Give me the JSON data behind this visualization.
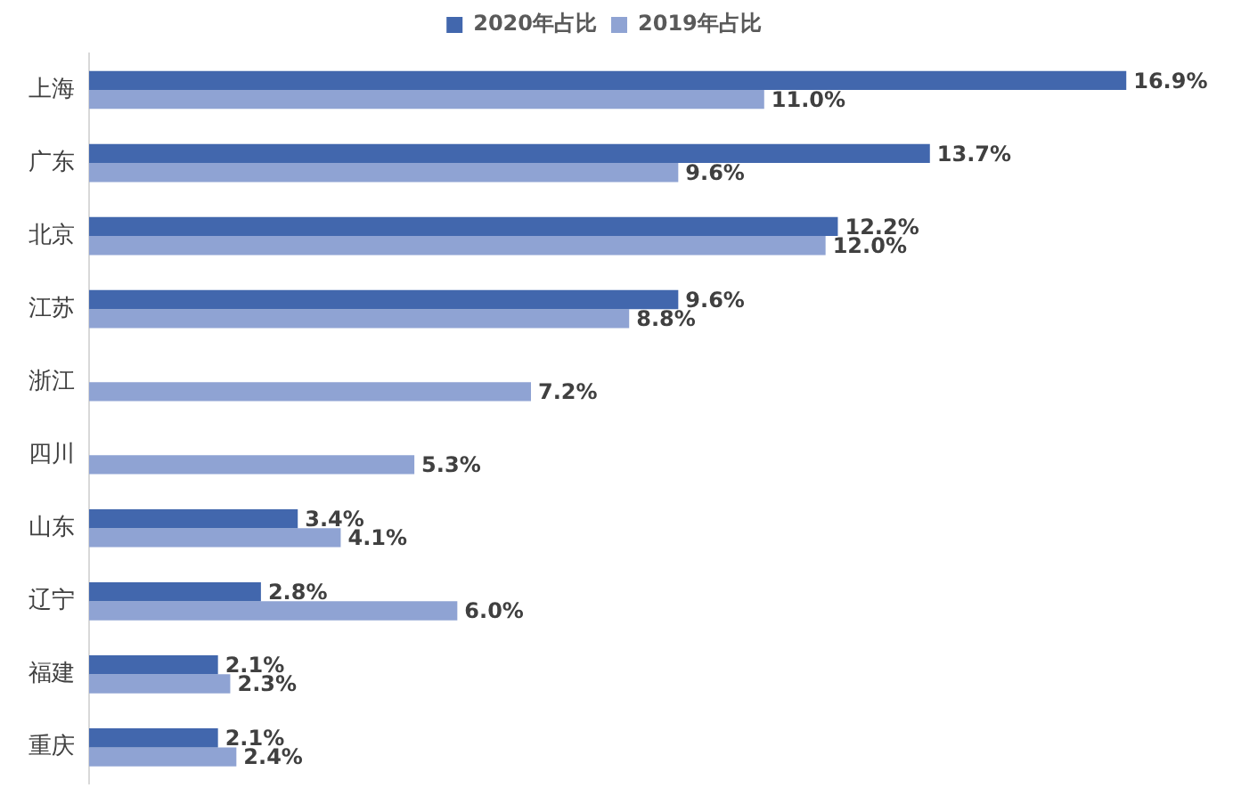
{
  "chart_data": {
    "type": "bar",
    "orientation": "horizontal",
    "categories": [
      "上海",
      "广东",
      "北京",
      "江苏",
      "浙江",
      "四川",
      "山东",
      "辽宁",
      "福建",
      "重庆"
    ],
    "series": [
      {
        "name": "2020年占比",
        "color": "#4267ad",
        "values": [
          16.9,
          13.7,
          12.2,
          9.6,
          null,
          null,
          3.4,
          2.8,
          2.1,
          2.1
        ],
        "value_labels": [
          "16.9%",
          "13.7%",
          "12.2%",
          "9.6%",
          null,
          null,
          "3.4%",
          "2.8%",
          "2.1%",
          "2.1%"
        ]
      },
      {
        "name": "2019年占比",
        "color": "#8fa3d3",
        "values": [
          11.0,
          9.6,
          12.0,
          8.8,
          7.2,
          5.3,
          4.1,
          6.0,
          2.3,
          2.4
        ],
        "value_labels": [
          "11.0%",
          "9.6%",
          "12.0%",
          "8.8%",
          "7.2%",
          "5.3%",
          "4.1%",
          "6.0%",
          "2.3%",
          "2.4%"
        ]
      }
    ],
    "legend": "top",
    "grid": false,
    "tick_labels": "y"
  }
}
